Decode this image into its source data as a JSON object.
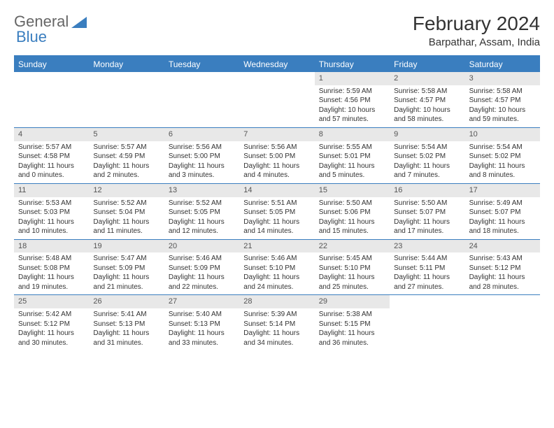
{
  "logo": {
    "general": "General",
    "blue": "Blue"
  },
  "title": "February 2024",
  "location": "Barpathar, Assam, India",
  "colors": {
    "accent": "#3a7ebf",
    "header_bg": "#3a7ebf",
    "header_text": "#ffffff",
    "daynum_bg": "#e8e8e8",
    "text": "#333333",
    "background": "#ffffff"
  },
  "day_labels": [
    "Sunday",
    "Monday",
    "Tuesday",
    "Wednesday",
    "Thursday",
    "Friday",
    "Saturday"
  ],
  "weeks": [
    [
      {
        "n": "",
        "sr": "",
        "ss": "",
        "dl": ""
      },
      {
        "n": "",
        "sr": "",
        "ss": "",
        "dl": ""
      },
      {
        "n": "",
        "sr": "",
        "ss": "",
        "dl": ""
      },
      {
        "n": "",
        "sr": "",
        "ss": "",
        "dl": ""
      },
      {
        "n": "1",
        "sr": "Sunrise: 5:59 AM",
        "ss": "Sunset: 4:56 PM",
        "dl": "Daylight: 10 hours and 57 minutes."
      },
      {
        "n": "2",
        "sr": "Sunrise: 5:58 AM",
        "ss": "Sunset: 4:57 PM",
        "dl": "Daylight: 10 hours and 58 minutes."
      },
      {
        "n": "3",
        "sr": "Sunrise: 5:58 AM",
        "ss": "Sunset: 4:57 PM",
        "dl": "Daylight: 10 hours and 59 minutes."
      }
    ],
    [
      {
        "n": "4",
        "sr": "Sunrise: 5:57 AM",
        "ss": "Sunset: 4:58 PM",
        "dl": "Daylight: 11 hours and 0 minutes."
      },
      {
        "n": "5",
        "sr": "Sunrise: 5:57 AM",
        "ss": "Sunset: 4:59 PM",
        "dl": "Daylight: 11 hours and 2 minutes."
      },
      {
        "n": "6",
        "sr": "Sunrise: 5:56 AM",
        "ss": "Sunset: 5:00 PM",
        "dl": "Daylight: 11 hours and 3 minutes."
      },
      {
        "n": "7",
        "sr": "Sunrise: 5:56 AM",
        "ss": "Sunset: 5:00 PM",
        "dl": "Daylight: 11 hours and 4 minutes."
      },
      {
        "n": "8",
        "sr": "Sunrise: 5:55 AM",
        "ss": "Sunset: 5:01 PM",
        "dl": "Daylight: 11 hours and 5 minutes."
      },
      {
        "n": "9",
        "sr": "Sunrise: 5:54 AM",
        "ss": "Sunset: 5:02 PM",
        "dl": "Daylight: 11 hours and 7 minutes."
      },
      {
        "n": "10",
        "sr": "Sunrise: 5:54 AM",
        "ss": "Sunset: 5:02 PM",
        "dl": "Daylight: 11 hours and 8 minutes."
      }
    ],
    [
      {
        "n": "11",
        "sr": "Sunrise: 5:53 AM",
        "ss": "Sunset: 5:03 PM",
        "dl": "Daylight: 11 hours and 10 minutes."
      },
      {
        "n": "12",
        "sr": "Sunrise: 5:52 AM",
        "ss": "Sunset: 5:04 PM",
        "dl": "Daylight: 11 hours and 11 minutes."
      },
      {
        "n": "13",
        "sr": "Sunrise: 5:52 AM",
        "ss": "Sunset: 5:05 PM",
        "dl": "Daylight: 11 hours and 12 minutes."
      },
      {
        "n": "14",
        "sr": "Sunrise: 5:51 AM",
        "ss": "Sunset: 5:05 PM",
        "dl": "Daylight: 11 hours and 14 minutes."
      },
      {
        "n": "15",
        "sr": "Sunrise: 5:50 AM",
        "ss": "Sunset: 5:06 PM",
        "dl": "Daylight: 11 hours and 15 minutes."
      },
      {
        "n": "16",
        "sr": "Sunrise: 5:50 AM",
        "ss": "Sunset: 5:07 PM",
        "dl": "Daylight: 11 hours and 17 minutes."
      },
      {
        "n": "17",
        "sr": "Sunrise: 5:49 AM",
        "ss": "Sunset: 5:07 PM",
        "dl": "Daylight: 11 hours and 18 minutes."
      }
    ],
    [
      {
        "n": "18",
        "sr": "Sunrise: 5:48 AM",
        "ss": "Sunset: 5:08 PM",
        "dl": "Daylight: 11 hours and 19 minutes."
      },
      {
        "n": "19",
        "sr": "Sunrise: 5:47 AM",
        "ss": "Sunset: 5:09 PM",
        "dl": "Daylight: 11 hours and 21 minutes."
      },
      {
        "n": "20",
        "sr": "Sunrise: 5:46 AM",
        "ss": "Sunset: 5:09 PM",
        "dl": "Daylight: 11 hours and 22 minutes."
      },
      {
        "n": "21",
        "sr": "Sunrise: 5:46 AM",
        "ss": "Sunset: 5:10 PM",
        "dl": "Daylight: 11 hours and 24 minutes."
      },
      {
        "n": "22",
        "sr": "Sunrise: 5:45 AM",
        "ss": "Sunset: 5:10 PM",
        "dl": "Daylight: 11 hours and 25 minutes."
      },
      {
        "n": "23",
        "sr": "Sunrise: 5:44 AM",
        "ss": "Sunset: 5:11 PM",
        "dl": "Daylight: 11 hours and 27 minutes."
      },
      {
        "n": "24",
        "sr": "Sunrise: 5:43 AM",
        "ss": "Sunset: 5:12 PM",
        "dl": "Daylight: 11 hours and 28 minutes."
      }
    ],
    [
      {
        "n": "25",
        "sr": "Sunrise: 5:42 AM",
        "ss": "Sunset: 5:12 PM",
        "dl": "Daylight: 11 hours and 30 minutes."
      },
      {
        "n": "26",
        "sr": "Sunrise: 5:41 AM",
        "ss": "Sunset: 5:13 PM",
        "dl": "Daylight: 11 hours and 31 minutes."
      },
      {
        "n": "27",
        "sr": "Sunrise: 5:40 AM",
        "ss": "Sunset: 5:13 PM",
        "dl": "Daylight: 11 hours and 33 minutes."
      },
      {
        "n": "28",
        "sr": "Sunrise: 5:39 AM",
        "ss": "Sunset: 5:14 PM",
        "dl": "Daylight: 11 hours and 34 minutes."
      },
      {
        "n": "29",
        "sr": "Sunrise: 5:38 AM",
        "ss": "Sunset: 5:15 PM",
        "dl": "Daylight: 11 hours and 36 minutes."
      },
      {
        "n": "",
        "sr": "",
        "ss": "",
        "dl": ""
      },
      {
        "n": "",
        "sr": "",
        "ss": "",
        "dl": ""
      }
    ]
  ]
}
